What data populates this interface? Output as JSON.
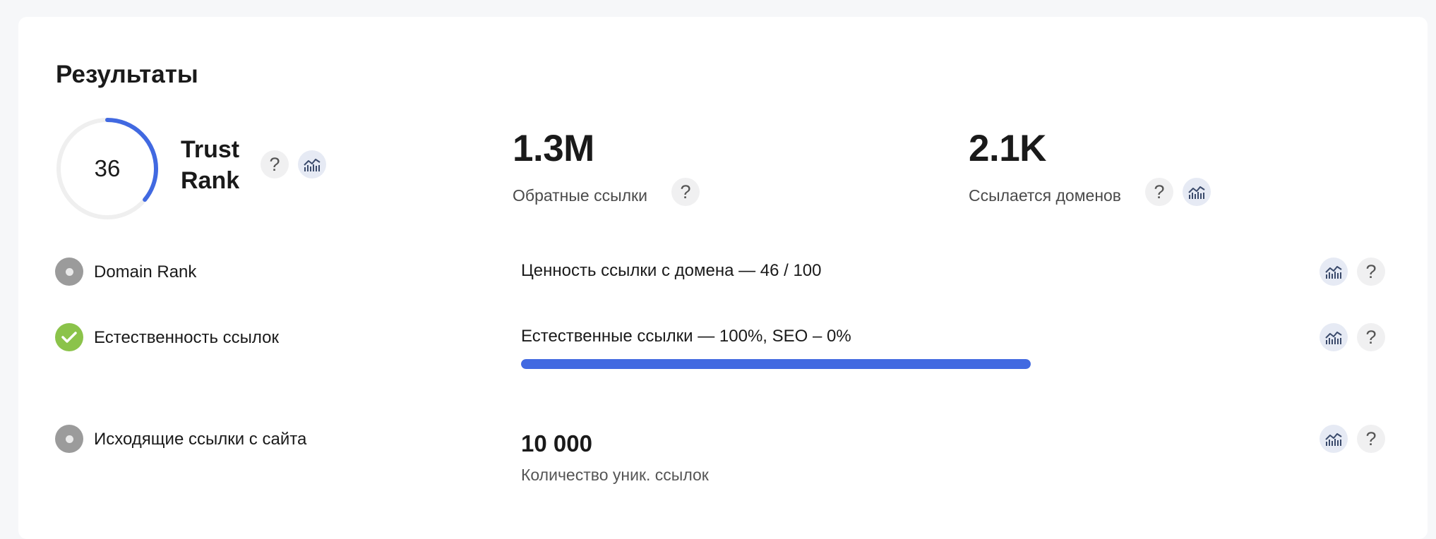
{
  "title": "Результаты",
  "trust_rank": {
    "value": "36",
    "label_line1": "Trust",
    "label_line2": "Rank",
    "progress_fraction": 0.36,
    "accent": "#4169e1"
  },
  "backlinks": {
    "value": "1.3M",
    "label": "Обратные ссылки"
  },
  "ref_domains": {
    "value": "2.1K",
    "label": "Ссылается доменов"
  },
  "rows": {
    "domain_rank": {
      "label": "Domain Rank",
      "value": "Ценность ссылки с домена — 46 / 100",
      "status": "neutral"
    },
    "naturalness": {
      "label": "Естественность ссылок",
      "value": "Естественные ссылки — 100%, SEO – 0%",
      "status": "ok",
      "natural_percent": 100
    },
    "outgoing": {
      "label": "Исходящие ссылки с сайта",
      "number": "10 000",
      "number_label": "Количество уник. ссылок",
      "status": "neutral"
    }
  },
  "icons": {
    "help": "question-icon",
    "chart": "chart-icon",
    "check": "check-icon"
  },
  "help_glyph": "?"
}
